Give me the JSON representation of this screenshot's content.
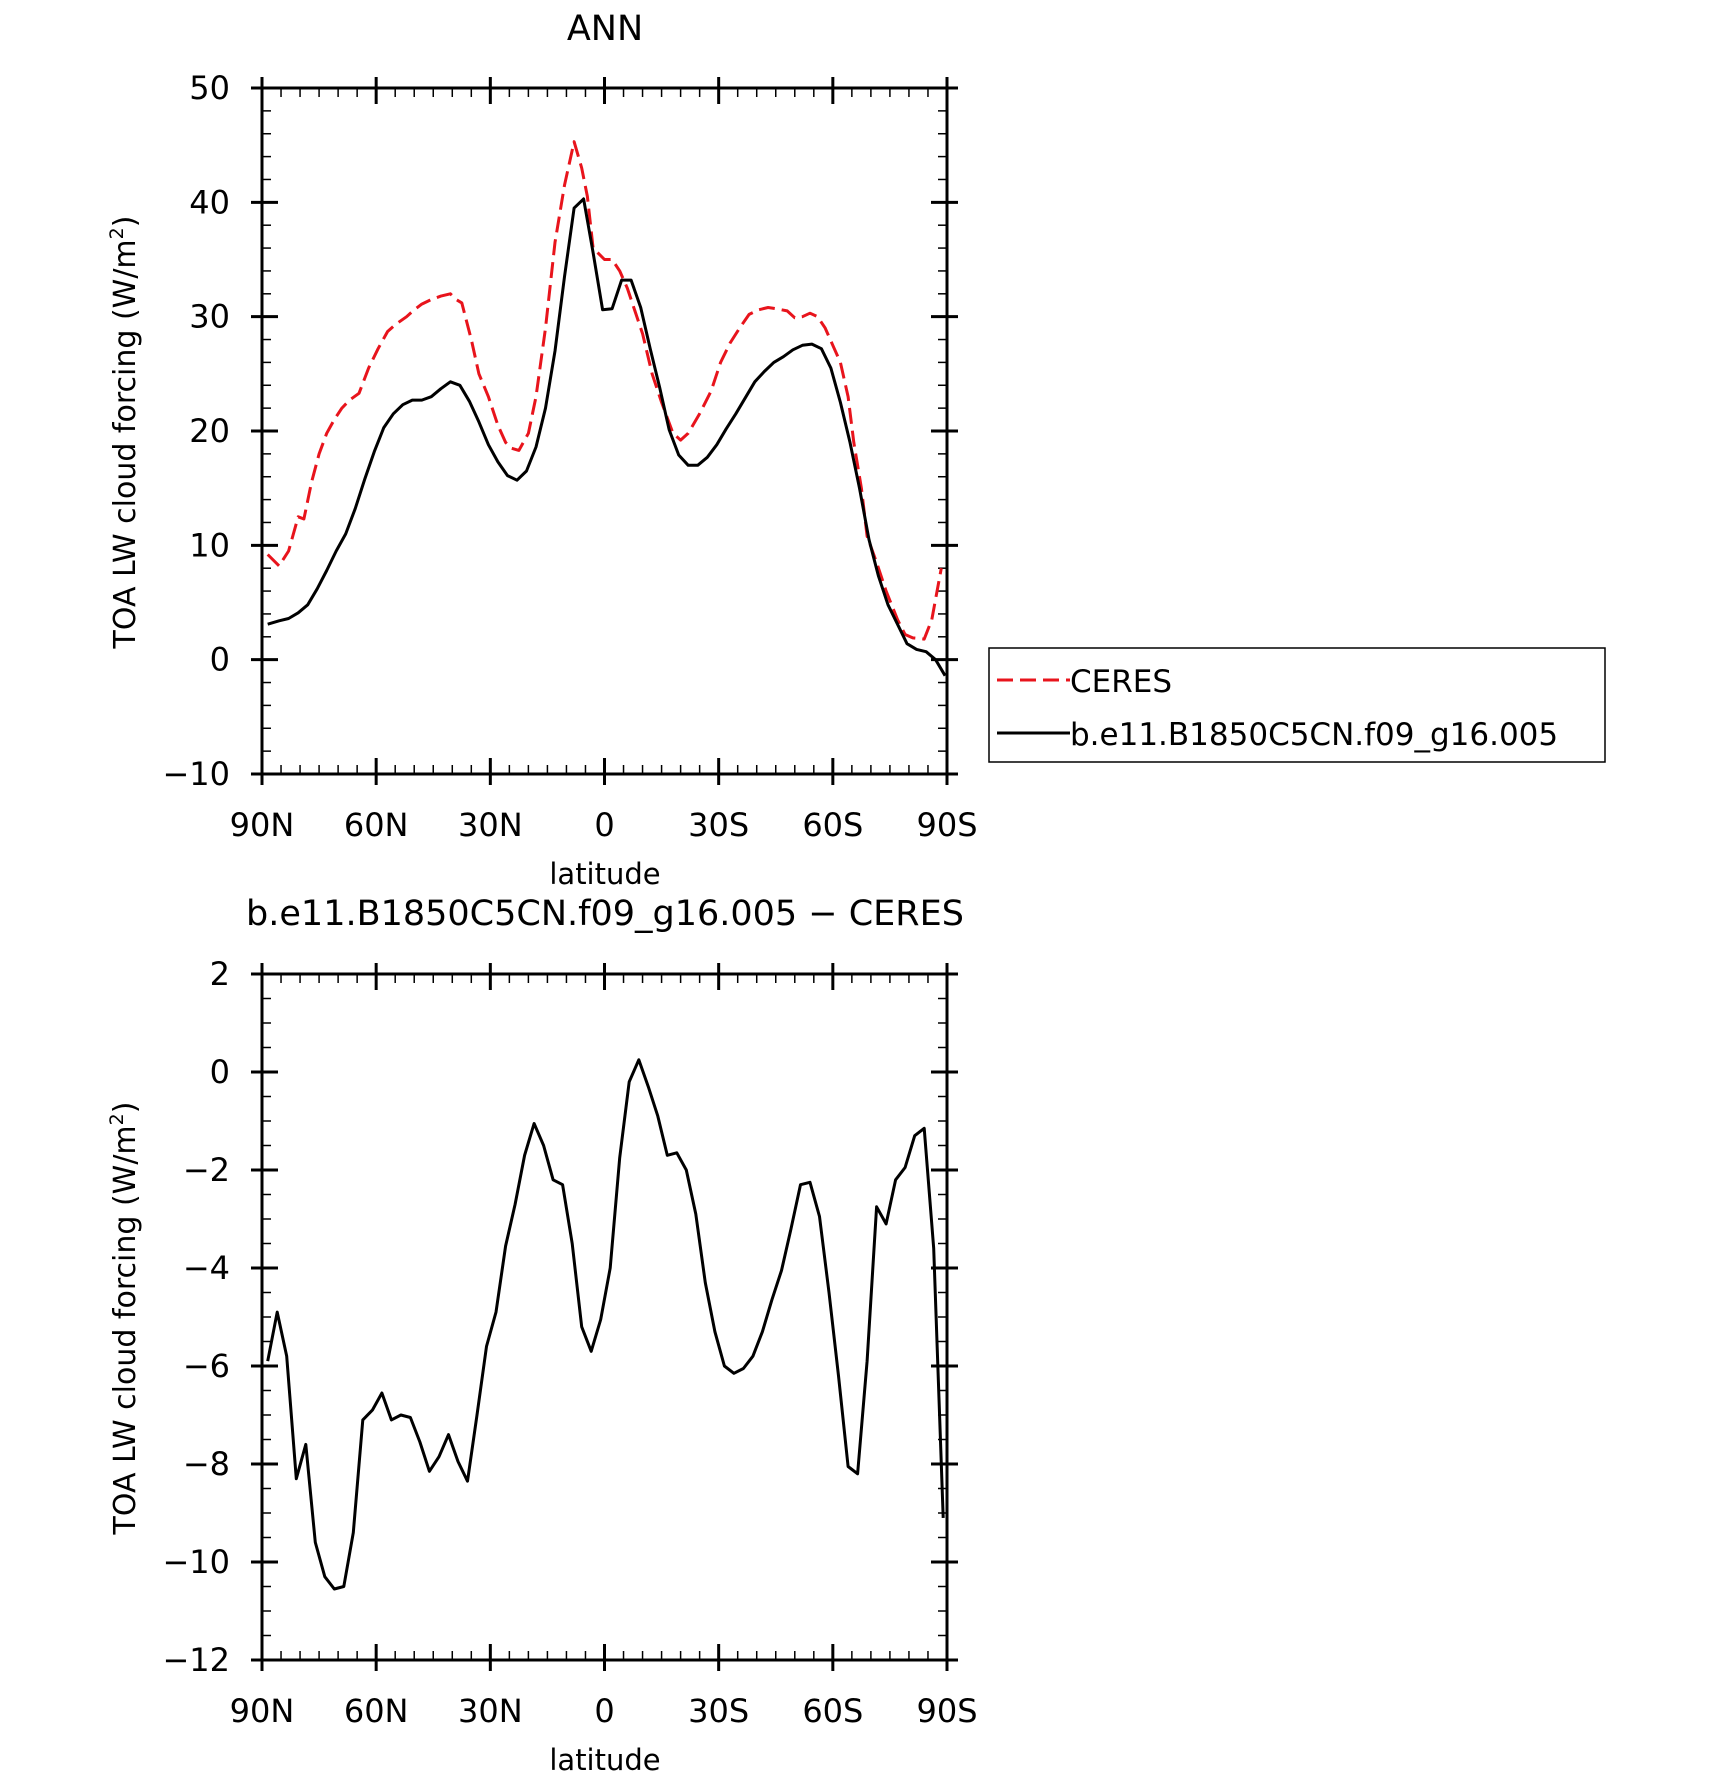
{
  "chart_data": [
    {
      "type": "line",
      "title": "ANN",
      "xlabel": "latitude",
      "ylabel_main": "TOA LW cloud forcing (W/m",
      "ylabel_sup": "2",
      "ylabel_close": ")",
      "xlim": [
        90,
        -90
      ],
      "ylim": [
        -10,
        50
      ],
      "x_ticks": [
        90,
        60,
        30,
        0,
        -30,
        -60,
        -90
      ],
      "x_ticklabels": [
        "90N",
        "60N",
        "30N",
        "0",
        "30S",
        "60S",
        "90S"
      ],
      "y_ticks": [
        -10,
        0,
        10,
        20,
        30,
        40,
        50
      ],
      "y_ticklabels": [
        "−10",
        "0",
        "10",
        "20",
        "30",
        "40",
        "50"
      ],
      "legend": "right, boxed",
      "series": [
        {
          "name": "CERES",
          "color": "#e8141c",
          "dash": "dashed",
          "x": [
            88.5,
            85.5,
            83,
            80.5,
            79,
            77,
            75,
            73,
            71,
            69,
            67,
            64.5,
            62,
            59.5,
            57,
            55,
            52,
            50,
            48,
            45.5,
            43,
            40.5,
            39,
            37.5,
            35,
            33,
            30.5,
            28,
            26,
            24.5,
            22.5,
            20,
            18,
            15.5,
            13,
            10.5,
            9.5,
            8,
            6,
            4.5,
            3,
            0,
            -2,
            -4,
            -6,
            -8,
            -10,
            -12.5,
            -15,
            -18,
            -20,
            -22,
            -25,
            -28,
            -30.5,
            -33,
            -35.5,
            -38,
            -40.5,
            -43,
            -45,
            -48,
            -50,
            -52,
            -54,
            -56,
            -58,
            -60,
            -62,
            -64,
            -65.5,
            -67.5,
            -69,
            -71.5,
            -74,
            -77,
            -79,
            -81,
            -84,
            -86,
            -88.5
          ],
          "y": [
            9.2,
            8.2,
            9.5,
            12.5,
            12.3,
            15.5,
            18,
            19.8,
            21,
            22,
            22.7,
            23.3,
            25.5,
            27.2,
            28.7,
            29.3,
            30,
            30.6,
            31.1,
            31.5,
            31.8,
            32,
            31.5,
            31.2,
            28,
            25,
            23,
            20.5,
            19,
            18.5,
            18.3,
            19.8,
            23,
            29,
            36.5,
            41.5,
            43,
            45.3,
            43,
            40.5,
            36,
            35,
            35,
            34,
            32.5,
            30.5,
            28.5,
            25,
            22.5,
            19.8,
            19.2,
            19.8,
            21.5,
            23.5,
            26,
            27.7,
            29,
            30.2,
            30.6,
            30.8,
            30.7,
            30.5,
            29.9,
            30,
            30.3,
            30,
            29,
            27.5,
            26,
            23,
            19,
            15,
            10.8,
            8.5,
            6,
            3.5,
            2.2,
            1.9,
            1.8,
            3.5,
            8
          ]
        },
        {
          "name": "b.e11.B1850C5CN.f09_g16.005",
          "color": "#000000",
          "dash": "solid",
          "x": [
            88.5,
            85.5,
            83,
            80.5,
            78,
            75.5,
            73,
            70.5,
            68,
            65.5,
            63,
            60.5,
            58,
            55.5,
            53,
            50.5,
            48,
            45.5,
            43,
            40.5,
            38,
            35.5,
            33,
            30.5,
            28,
            25.5,
            23,
            20.5,
            18,
            15.5,
            13,
            10.5,
            8,
            5.5,
            3,
            0.5,
            -2,
            -4.5,
            -7,
            -9.5,
            -12,
            -14.5,
            -17,
            -19.5,
            -22,
            -24.5,
            -27,
            -29.5,
            -32,
            -34.5,
            -37,
            -39.5,
            -42,
            -44.5,
            -47,
            -49.5,
            -52,
            -54.5,
            -57,
            -59.5,
            -62,
            -64.5,
            -67,
            -69.5,
            -72,
            -74.5,
            -77,
            -79.5,
            -82,
            -84.5,
            -87,
            -89.5
          ],
          "y": [
            3.1,
            3.4,
            3.6,
            4.1,
            4.8,
            6.2,
            7.8,
            9.5,
            11,
            13.2,
            15.8,
            18.2,
            20.3,
            21.5,
            22.3,
            22.7,
            22.7,
            23,
            23.7,
            24.3,
            24,
            22.6,
            20.8,
            18.8,
            17.3,
            16.1,
            15.7,
            16.5,
            18.6,
            22,
            27,
            33.5,
            39.5,
            40.3,
            35.6,
            30.6,
            30.7,
            33.2,
            33.2,
            30.8,
            27.2,
            23.8,
            20.1,
            17.9,
            17,
            17,
            17.7,
            18.8,
            20.2,
            21.5,
            22.9,
            24.3,
            25.2,
            26,
            26.5,
            27.1,
            27.5,
            27.6,
            27.2,
            25.5,
            22.5,
            19,
            15,
            10.5,
            7.3,
            4.8,
            3.1,
            1.4,
            0.9,
            0.7,
            0,
            -1.4
          ]
        }
      ]
    },
    {
      "type": "line",
      "title": "b.e11.B1850C5CN.f09_g16.005 − CERES",
      "xlabel": "latitude",
      "ylabel_main": "TOA LW cloud forcing (W/m",
      "ylabel_sup": "2",
      "ylabel_close": ")",
      "xlim": [
        90,
        -90
      ],
      "ylim": [
        -12,
        2
      ],
      "x_ticks": [
        90,
        60,
        30,
        0,
        -30,
        -60,
        -90
      ],
      "x_ticklabels": [
        "90N",
        "60N",
        "30N",
        "0",
        "30S",
        "60S",
        "90S"
      ],
      "y_ticks": [
        -12,
        -10,
        -8,
        -6,
        -4,
        -2,
        0,
        2
      ],
      "y_ticklabels": [
        "−12",
        "−10",
        "−8",
        "−6",
        "−4",
        "−2",
        "0",
        "2"
      ],
      "series": [
        {
          "color": "#000000",
          "dash": "solid",
          "x": [
            88.5,
            86,
            83.5,
            81,
            78.5,
            76,
            73.5,
            71,
            68.5,
            66,
            63.5,
            61,
            58.5,
            56,
            53.5,
            51,
            48.5,
            46,
            43.5,
            41,
            38.5,
            36,
            33.5,
            31,
            28.5,
            26,
            23.5,
            21,
            18.5,
            16,
            13.5,
            11,
            8.5,
            6,
            3.5,
            1,
            -1.5,
            -4,
            -6.5,
            -9,
            -11.5,
            -14,
            -16.5,
            -19,
            -21.5,
            -24,
            -26.5,
            -29,
            -31.5,
            -34,
            -36.5,
            -39,
            -41.5,
            -44,
            -46.5,
            -49,
            -51.5,
            -54,
            -56.5,
            -59,
            -61.5,
            -64,
            -66.5,
            -69,
            -71.5,
            -74,
            -76.5,
            -79,
            -81.5,
            -84,
            -86.5,
            -89
          ],
          "y": [
            -5.9,
            -4.9,
            -5.8,
            -8.3,
            -7.6,
            -9.6,
            -10.3,
            -10.55,
            -10.5,
            -9.4,
            -7.1,
            -6.9,
            -6.55,
            -7.1,
            -7,
            -7.05,
            -7.55,
            -8.15,
            -7.85,
            -7.4,
            -7.95,
            -8.35,
            -7,
            -5.6,
            -4.9,
            -3.55,
            -2.7,
            -1.7,
            -1.05,
            -1.5,
            -2.2,
            -2.3,
            -3.5,
            -5.2,
            -5.7,
            -5.05,
            -4,
            -1.75,
            -0.2,
            0.25,
            -0.3,
            -0.9,
            -1.7,
            -1.65,
            -2,
            -2.9,
            -4.3,
            -5.3,
            -6,
            -6.15,
            -6.05,
            -5.8,
            -5.3,
            -4.65,
            -4.05,
            -3.2,
            -2.3,
            -2.25,
            -2.95,
            -4.5,
            -6.2,
            -8.05,
            -8.2,
            -5.9,
            -2.75,
            -3.1,
            -2.2,
            -1.95,
            -1.3,
            -1.15,
            -3.6,
            -9.1
          ]
        }
      ]
    }
  ]
}
